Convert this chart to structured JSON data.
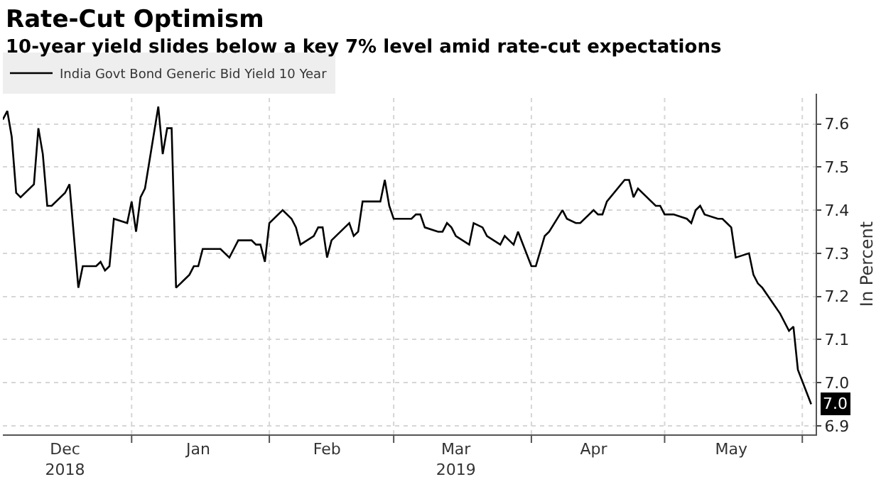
{
  "chart_data": {
    "type": "line",
    "title": "Rate-Cut Optimism",
    "subtitle": "10-year yield slides below a key 7% level amid rate-cut expectations",
    "ylabel": "In Percent",
    "x": [
      "2018-12-03",
      "2018-12-04",
      "2018-12-05",
      "2018-12-06",
      "2018-12-07",
      "2018-12-10",
      "2018-12-11",
      "2018-12-12",
      "2018-12-13",
      "2018-12-14",
      "2018-12-17",
      "2018-12-18",
      "2018-12-19",
      "2018-12-20",
      "2018-12-21",
      "2018-12-24",
      "2018-12-25",
      "2018-12-26",
      "2018-12-27",
      "2018-12-28",
      "2018-12-31",
      "2019-01-01",
      "2019-01-02",
      "2019-01-03",
      "2019-01-04",
      "2019-01-07",
      "2019-01-08",
      "2019-01-09",
      "2019-01-10",
      "2019-01-11",
      "2019-01-14",
      "2019-01-15",
      "2019-01-16",
      "2019-01-17",
      "2019-01-21",
      "2019-01-22",
      "2019-01-23",
      "2019-01-24",
      "2019-01-25",
      "2019-01-28",
      "2019-01-29",
      "2019-01-30",
      "2019-01-31",
      "2019-02-01",
      "2019-02-04",
      "2019-02-06",
      "2019-02-07",
      "2019-02-08",
      "2019-02-11",
      "2019-02-12",
      "2019-02-13",
      "2019-02-14",
      "2019-02-15",
      "2019-02-18",
      "2019-02-19",
      "2019-02-20",
      "2019-02-21",
      "2019-02-22",
      "2019-02-25",
      "2019-02-26",
      "2019-02-27",
      "2019-02-28",
      "2019-03-01",
      "2019-03-05",
      "2019-03-06",
      "2019-03-07",
      "2019-03-08",
      "2019-03-11",
      "2019-03-12",
      "2019-03-13",
      "2019-03-14",
      "2019-03-15",
      "2019-03-18",
      "2019-03-19",
      "2019-03-21",
      "2019-03-22",
      "2019-03-25",
      "2019-03-26",
      "2019-03-27",
      "2019-03-28",
      "2019-03-29",
      "2019-04-01",
      "2019-04-02",
      "2019-04-04",
      "2019-04-05",
      "2019-04-08",
      "2019-04-09",
      "2019-04-11",
      "2019-04-12",
      "2019-04-15",
      "2019-04-16",
      "2019-04-17",
      "2019-04-18",
      "2019-04-22",
      "2019-04-23",
      "2019-04-24",
      "2019-04-25",
      "2019-04-29",
      "2019-04-30",
      "2019-05-01",
      "2019-05-02",
      "2019-05-03",
      "2019-05-06",
      "2019-05-07",
      "2019-05-08",
      "2019-05-09",
      "2019-05-10",
      "2019-05-13",
      "2019-05-14",
      "2019-05-15",
      "2019-05-16",
      "2019-05-17",
      "2019-05-20",
      "2019-05-21",
      "2019-05-22",
      "2019-05-23",
      "2019-05-27",
      "2019-05-28",
      "2019-05-29",
      "2019-05-30",
      "2019-05-31",
      "2019-06-03"
    ],
    "series": [
      {
        "name": "India Govt Bond Generic Bid Yield 10 Year",
        "color": "#000000",
        "values": [
          7.61,
          7.63,
          7.57,
          7.44,
          7.43,
          7.46,
          7.59,
          7.53,
          7.41,
          7.41,
          7.44,
          7.46,
          7.34,
          7.22,
          7.27,
          7.27,
          7.28,
          7.26,
          7.27,
          7.38,
          7.37,
          7.42,
          7.35,
          7.43,
          7.45,
          7.64,
          7.53,
          7.59,
          7.59,
          7.22,
          7.25,
          7.27,
          7.27,
          7.31,
          7.31,
          7.3,
          7.29,
          7.31,
          7.33,
          7.33,
          7.32,
          7.32,
          7.28,
          7.37,
          7.4,
          7.38,
          7.36,
          7.32,
          7.34,
          7.36,
          7.36,
          7.29,
          7.33,
          7.36,
          7.37,
          7.34,
          7.35,
          7.42,
          7.42,
          7.42,
          7.47,
          7.41,
          7.38,
          7.38,
          7.39,
          7.39,
          7.36,
          7.35,
          7.35,
          7.37,
          7.36,
          7.34,
          7.32,
          7.37,
          7.36,
          7.34,
          7.32,
          7.34,
          7.33,
          7.32,
          7.35,
          7.27,
          7.27,
          7.34,
          7.35,
          7.4,
          7.38,
          7.37,
          7.37,
          7.4,
          7.39,
          7.39,
          7.42,
          7.47,
          7.47,
          7.43,
          7.45,
          7.41,
          7.41,
          7.39,
          7.39,
          7.39,
          7.38,
          7.37,
          7.4,
          7.41,
          7.39,
          7.38,
          7.38,
          7.37,
          7.36,
          7.29,
          7.3,
          7.25,
          7.23,
          7.22,
          7.16,
          7.14,
          7.12,
          7.13,
          7.03,
          6.95
        ],
        "value_labels": [
          null,
          null,
          null,
          null,
          null,
          null,
          null,
          null,
          null,
          null,
          null,
          null,
          null,
          null,
          null,
          null,
          null,
          null,
          null,
          null,
          null,
          null,
          null,
          null,
          null,
          null,
          null,
          null,
          null,
          null,
          null,
          null,
          null,
          null,
          null,
          null,
          null,
          null,
          null,
          null,
          null,
          null,
          null,
          null,
          null,
          null,
          null,
          null,
          null,
          null,
          null,
          null,
          null,
          null,
          null,
          null,
          null,
          null,
          null,
          null,
          null,
          null,
          null,
          null,
          null,
          null,
          null,
          null,
          null,
          null,
          null,
          null,
          null,
          null,
          null,
          null,
          null,
          null,
          null,
          null,
          null,
          null,
          null,
          null,
          null,
          null,
          null,
          null,
          null,
          null,
          null,
          null,
          null,
          null,
          null,
          null,
          null,
          null,
          null,
          null,
          null,
          null,
          null,
          null,
          null,
          null,
          null,
          null,
          null,
          null,
          null,
          null,
          null,
          null,
          null,
          null,
          null,
          null,
          null,
          null,
          null,
          "7.0"
        ]
      }
    ],
    "xlim": [
      "2018-12-03",
      "2019-06-04"
    ],
    "xticks": [
      {
        "value": "2018-12-17",
        "label": "Dec\n2018"
      },
      {
        "value": "2019-01-01",
        "label": null
      },
      {
        "value": "2019-01-16",
        "label": "Jan"
      },
      {
        "value": "2019-02-01",
        "label": null
      },
      {
        "value": "2019-02-14",
        "label": "Feb"
      },
      {
        "value": "2019-03-01",
        "label": null
      },
      {
        "value": "2019-03-15",
        "label": "Mar\n2019"
      },
      {
        "value": "2019-04-01",
        "label": null
      },
      {
        "value": "2019-04-15",
        "label": "Apr"
      },
      {
        "value": "2019-05-01",
        "label": null
      },
      {
        "value": "2019-05-16",
        "label": "May"
      },
      {
        "value": "2019-06-01",
        "label": null
      }
    ],
    "ylim": [
      6.88,
      7.67
    ],
    "yticks": [
      6.9,
      {
        "value": 7.0,
        "label": "7.0"
      },
      7.1,
      7.2,
      7.3,
      7.4,
      7.5,
      7.6
    ],
    "grid": true,
    "legend": "top left"
  }
}
